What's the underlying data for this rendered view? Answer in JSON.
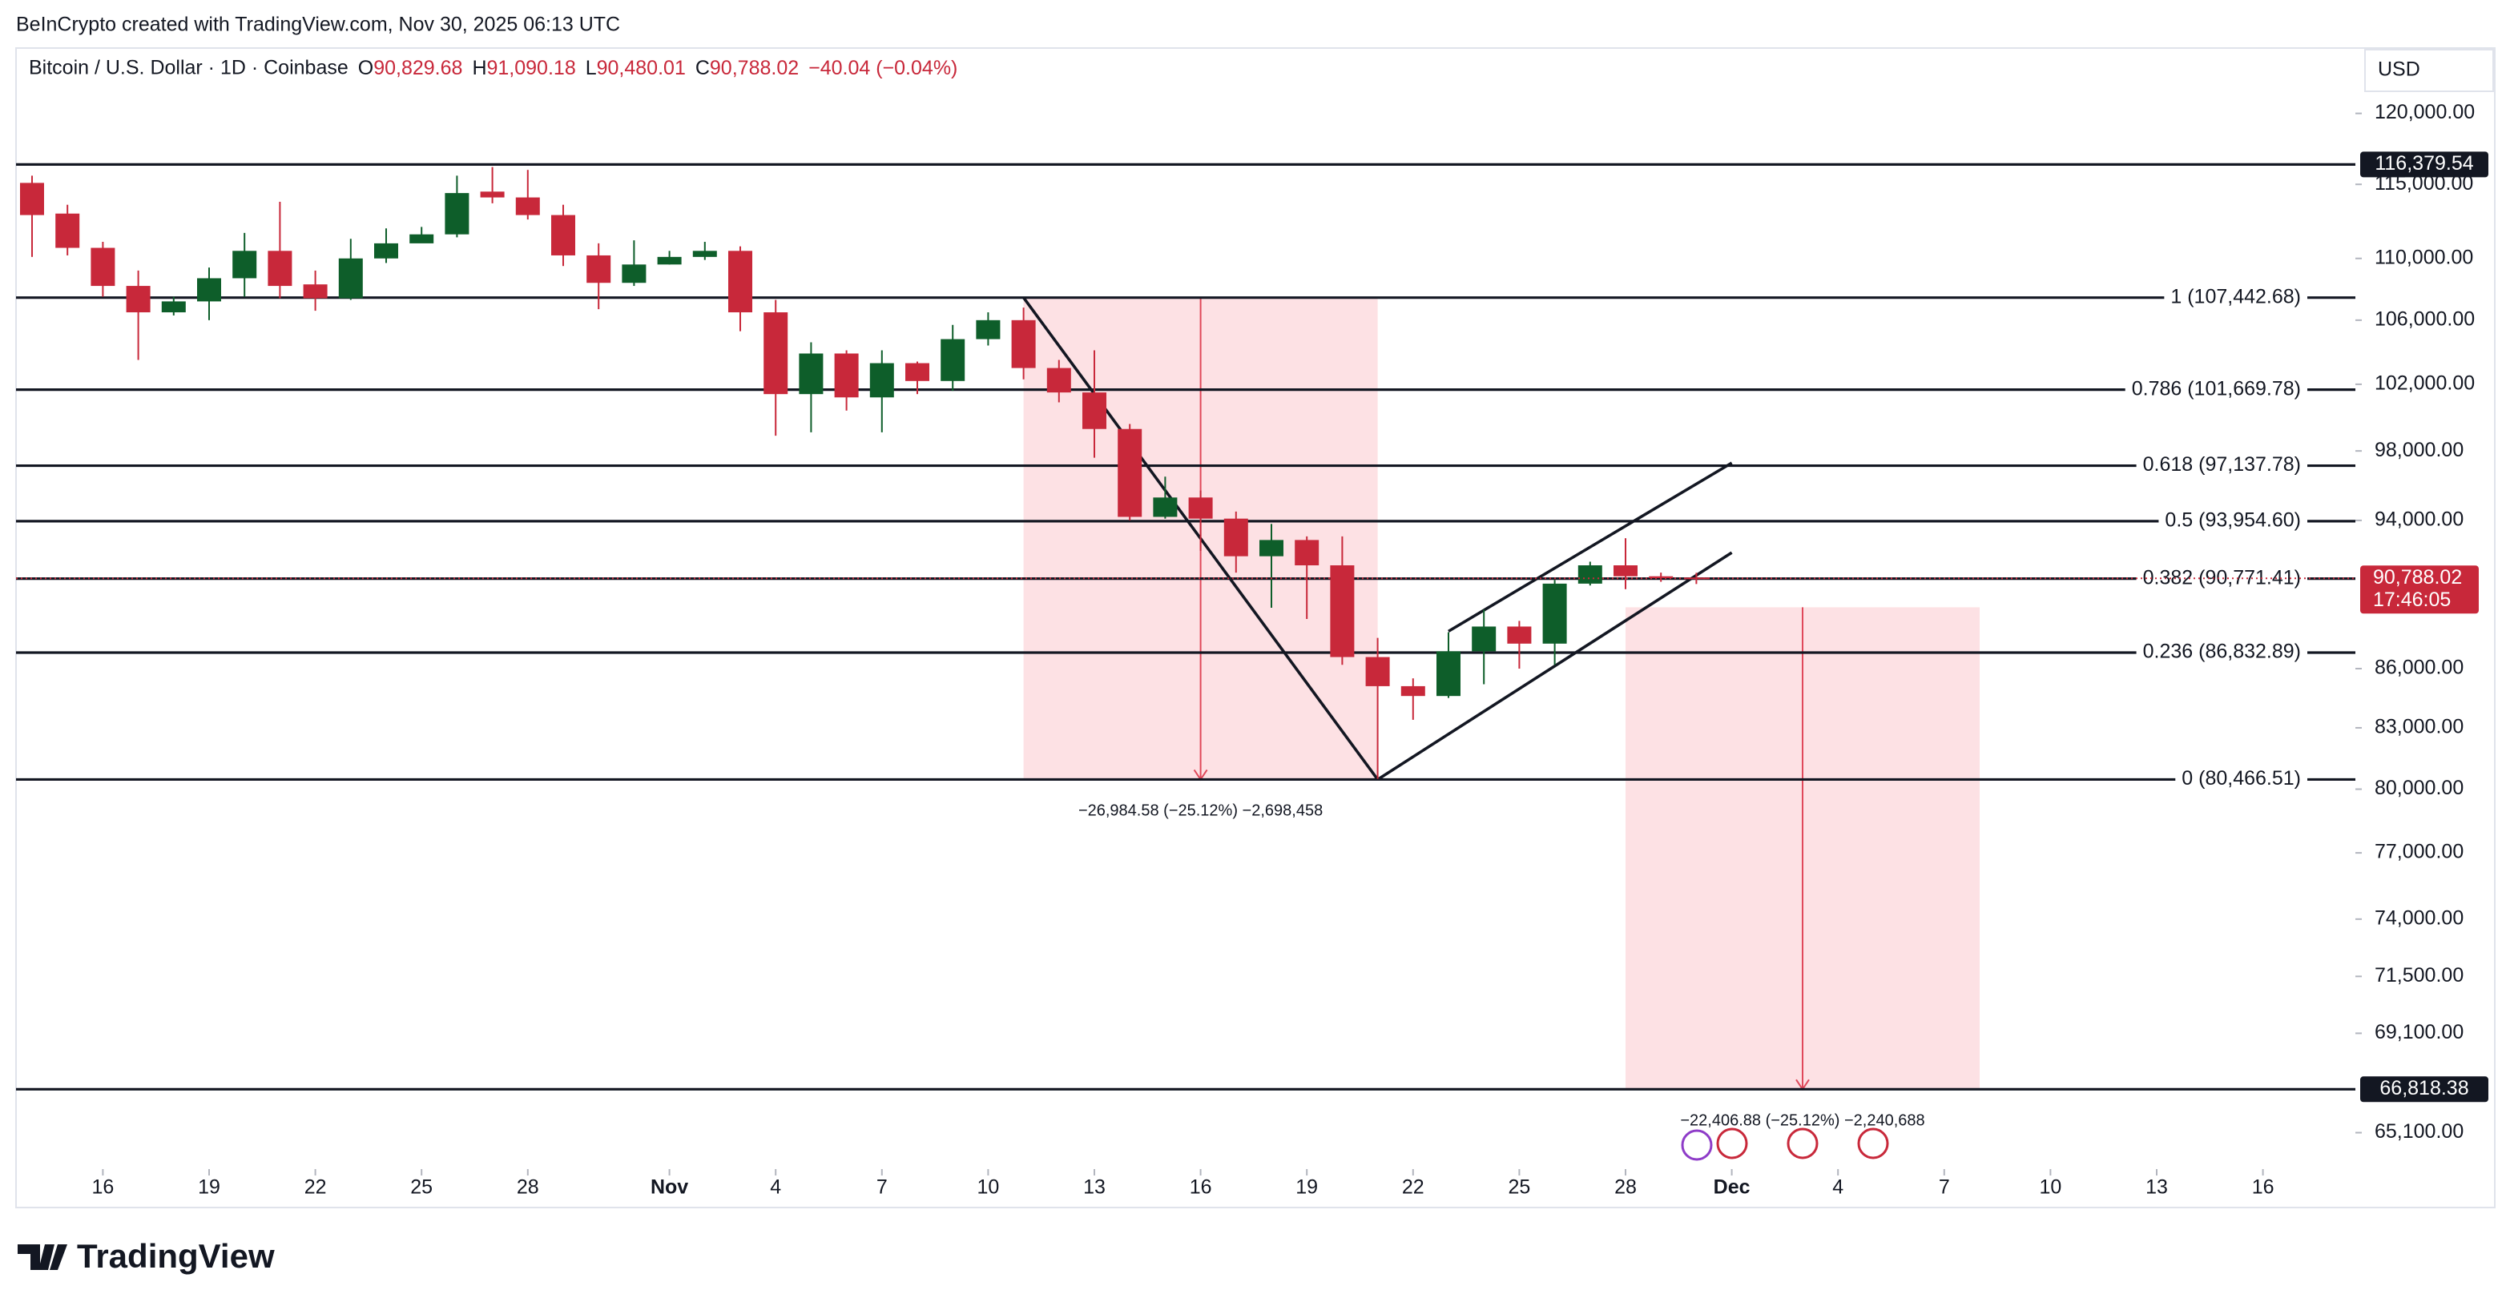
{
  "chart_data": {
    "type": "candlestick",
    "attribution": "BeInCrypto created with TradingView.com, Nov 30, 2025 06:13 UTC",
    "symbol": "Bitcoin / U.S. Dollar · 1D · Coinbase",
    "ohlc": [
      {
        "key": "O",
        "value": 90829.68,
        "label": "90,829.68"
      },
      {
        "key": "H",
        "value": 91090.18,
        "label": "91,090.18"
      },
      {
        "key": "L",
        "value": 90480.01,
        "label": "90,480.01"
      },
      {
        "key": "C",
        "value": 90788.02,
        "label": "90,788.02"
      }
    ],
    "change": {
      "value": -40.04,
      "label": "−40.04 (−0.04%)"
    },
    "last_date": "2025-11-30",
    "countdown": "17:46:05",
    "currency": "USD",
    "brand": "TradingView",
    "up_color": "#0e5e2a",
    "down_color": "#c8283a",
    "log_scale": true,
    "x": [
      "2025-10-14",
      "2025-10-15",
      "2025-10-16",
      "2025-10-17",
      "2025-10-18",
      "2025-10-19",
      "2025-10-20",
      "2025-10-21",
      "2025-10-22",
      "2025-10-23",
      "2025-10-24",
      "2025-10-25",
      "2025-10-26",
      "2025-10-27",
      "2025-10-28",
      "2025-10-29",
      "2025-10-30",
      "2025-10-31",
      "2025-11-01",
      "2025-11-02",
      "2025-11-03",
      "2025-11-04",
      "2025-11-05",
      "2025-11-06",
      "2025-11-07",
      "2025-11-08",
      "2025-11-09",
      "2025-11-10",
      "2025-11-11",
      "2025-11-12",
      "2025-11-13",
      "2025-11-14",
      "2025-11-15",
      "2025-11-16",
      "2025-11-17",
      "2025-11-18",
      "2025-11-19",
      "2025-11-20",
      "2025-11-21",
      "2025-11-22",
      "2025-11-23",
      "2025-11-24",
      "2025-11-25",
      "2025-11-26",
      "2025-11-27",
      "2025-11-28",
      "2025-11-29"
    ],
    "open": [
      115100,
      113000,
      110700,
      108200,
      106500,
      107200,
      108700,
      110500,
      108300,
      107400,
      110000,
      111000,
      111600,
      114500,
      114100,
      112900,
      110200,
      108400,
      109600,
      110100,
      110500,
      106500,
      101400,
      103900,
      101200,
      103300,
      102200,
      104800,
      106000,
      103000,
      101500,
      99300,
      94200,
      95300,
      94100,
      92000,
      92900,
      91500,
      86600,
      85100,
      84600,
      86900,
      88200,
      87300,
      90500,
      91500,
      90900
    ],
    "high": [
      115600,
      113600,
      111100,
      109200,
      107500,
      109400,
      111700,
      113800,
      109200,
      111300,
      112000,
      112100,
      115600,
      116200,
      116000,
      113600,
      111000,
      111200,
      110500,
      111100,
      110800,
      107300,
      104600,
      104100,
      104100,
      103400,
      105700,
      106500,
      106800,
      103500,
      104100,
      99600,
      96500,
      95700,
      94500,
      93800,
      93100,
      93100,
      87600,
      85500,
      87900,
      89100,
      88500,
      90700,
      91700,
      93000,
      91100
    ],
    "low": [
      110100,
      110200,
      107500,
      103500,
      106300,
      106000,
      107500,
      107400,
      106600,
      107300,
      109700,
      111300,
      111400,
      113700,
      112600,
      109500,
      106700,
      108200,
      109600,
      109900,
      105300,
      98900,
      99100,
      100400,
      99100,
      101400,
      101600,
      104400,
      102300,
      100900,
      97600,
      94000,
      94100,
      92300,
      91100,
      89200,
      88600,
      86200,
      80500,
      83400,
      84500,
      85200,
      86000,
      86200,
      90400,
      90200,
      90600
    ],
    "close": [
      112900,
      110700,
      108200,
      106500,
      107200,
      108700,
      110500,
      108200,
      107400,
      110000,
      111000,
      111600,
      114400,
      114100,
      112900,
      110200,
      108400,
      109600,
      110100,
      110500,
      106500,
      101400,
      103900,
      101200,
      103300,
      102200,
      104800,
      106000,
      103000,
      101500,
      99300,
      94200,
      95300,
      94100,
      92000,
      92900,
      91500,
      86600,
      85100,
      84600,
      86900,
      88200,
      87300,
      90500,
      91500,
      90900,
      90800
    ],
    "xlim": [
      "2025-10-14",
      "2025-12-18"
    ],
    "xticks": [
      {
        "value": "2025-10-16",
        "label": "16"
      },
      {
        "value": "2025-10-19",
        "label": "19"
      },
      {
        "value": "2025-10-22",
        "label": "22"
      },
      {
        "value": "2025-10-25",
        "label": "25"
      },
      {
        "value": "2025-10-28",
        "label": "28"
      },
      {
        "value": "2025-11-01",
        "label": "Nov"
      },
      {
        "value": "2025-11-04",
        "label": "4"
      },
      {
        "value": "2025-11-07",
        "label": "7"
      },
      {
        "value": "2025-11-10",
        "label": "10"
      },
      {
        "value": "2025-11-13",
        "label": "13"
      },
      {
        "value": "2025-11-16",
        "label": "16"
      },
      {
        "value": "2025-11-19",
        "label": "19"
      },
      {
        "value": "2025-11-22",
        "label": "22"
      },
      {
        "value": "2025-11-25",
        "label": "25"
      },
      {
        "value": "2025-11-28",
        "label": "28"
      },
      {
        "value": "2025-12-01",
        "label": "Dec"
      },
      {
        "value": "2025-12-04",
        "label": "4"
      },
      {
        "value": "2025-12-07",
        "label": "7"
      },
      {
        "value": "2025-12-10",
        "label": "10"
      },
      {
        "value": "2025-12-13",
        "label": "13"
      },
      {
        "value": "2025-12-16",
        "label": "16"
      }
    ],
    "ylim": [
      64000,
      124800
    ],
    "yticks": [
      {
        "value": 120000,
        "label": "120,000.00"
      },
      {
        "value": 115000,
        "label": "115,000.00"
      },
      {
        "value": 110000,
        "label": "110,000.00"
      },
      {
        "value": 106000,
        "label": "106,000.00"
      },
      {
        "value": 102000,
        "label": "102,000.00"
      },
      {
        "value": 98000,
        "label": "98,000.00"
      },
      {
        "value": 94000,
        "label": "94,000.00"
      },
      {
        "value": 86000,
        "label": "86,000.00"
      },
      {
        "value": 83000,
        "label": "83,000.00"
      },
      {
        "value": 80000,
        "label": "80,000.00"
      },
      {
        "value": 77000,
        "label": "77,000.00"
      },
      {
        "value": 74000,
        "label": "74,000.00"
      },
      {
        "value": 71500,
        "label": "71,500.00"
      },
      {
        "value": 69100,
        "label": "69,100.00"
      },
      {
        "value": 65100,
        "label": "65,100.00"
      }
    ],
    "levels": [
      {
        "value": 116379.54,
        "label": "116,379.54",
        "style": "box"
      },
      {
        "value": 107442.68,
        "label": "1 (107,442.68)",
        "style": "fib"
      },
      {
        "value": 101669.78,
        "label": "0.786 (101,669.78)",
        "style": "fib"
      },
      {
        "value": 97137.78,
        "label": "0.618 (97,137.78)",
        "style": "fib"
      },
      {
        "value": 93954.6,
        "label": "0.5 (93,954.60)",
        "style": "fib"
      },
      {
        "value": 90771.41,
        "label": "0.382 (90,771.41)",
        "style": "fib"
      },
      {
        "value": 86832.89,
        "label": "0.236 (86,832.89)",
        "style": "fib"
      },
      {
        "value": 80466.51,
        "label": "0 (80,466.51)",
        "style": "fib"
      },
      {
        "value": 66818.38,
        "label": "66,818.38",
        "style": "box"
      }
    ],
    "measures": [
      {
        "start": "2025-11-11",
        "end": "2025-11-21",
        "from": 107451.09,
        "to": 80466.51,
        "label": "−26,984.58 (−25.12%) −2,698,458"
      },
      {
        "start": "2025-11-28",
        "end": "2025-12-08",
        "from": 89225.26,
        "to": 66818.38,
        "label": "−22,406.88 (−25.12%) −2,240,688"
      }
    ],
    "trendlines": [
      {
        "points": [
          [
            "2025-11-11",
            107442.68
          ],
          [
            "2025-11-21",
            80466.51
          ]
        ]
      },
      {
        "points": [
          [
            "2025-11-21",
            80466.51
          ],
          [
            "2025-12-01",
            92200
          ]
        ]
      },
      {
        "points": [
          [
            "2025-11-23",
            87950
          ],
          [
            "2025-12-01",
            97300
          ]
        ]
      }
    ]
  }
}
